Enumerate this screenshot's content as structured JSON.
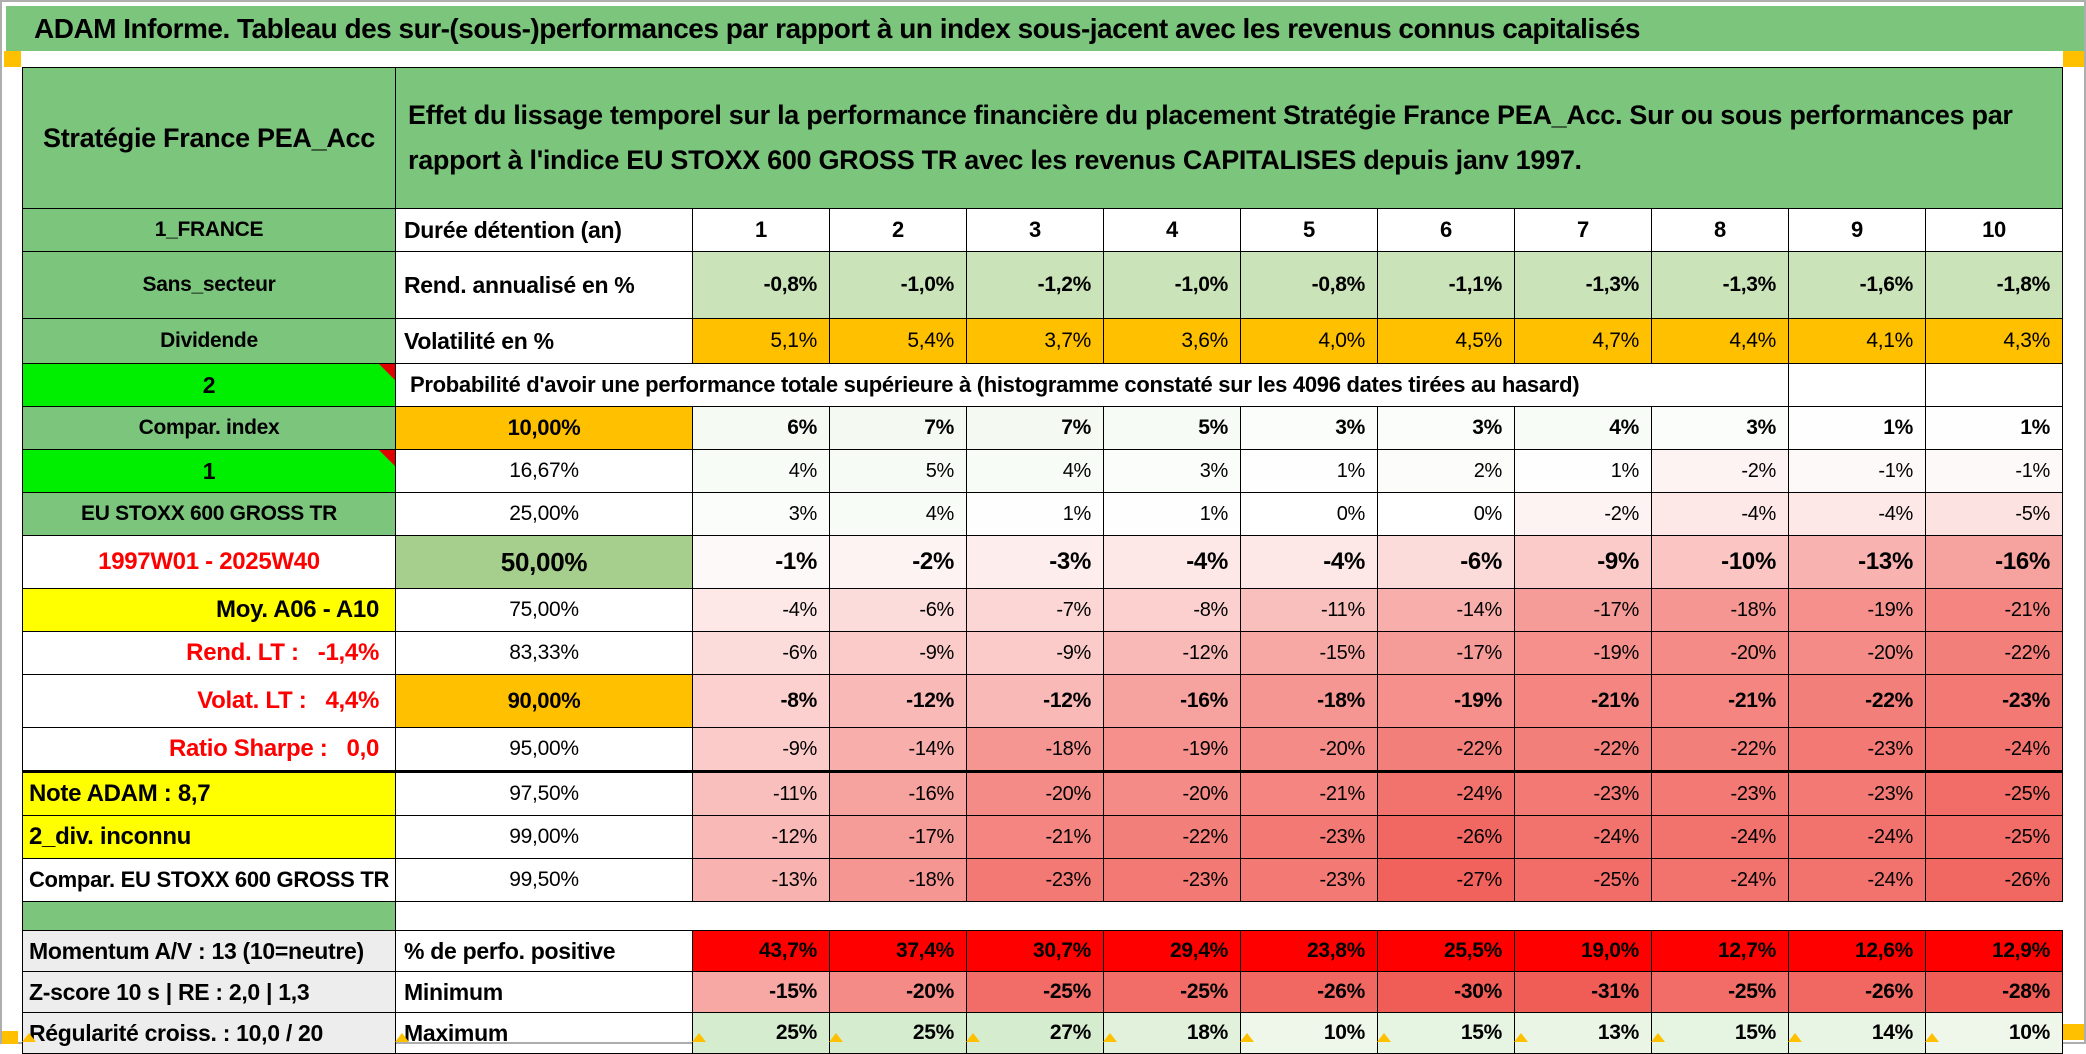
{
  "palette": {
    "green": "#7CC57D",
    "bright_green": "#00EF00",
    "orange": "#FFC000",
    "yellow": "#FFFF00",
    "light_green_row": "#CBE3B9",
    "pct_green": "#A6CE8C",
    "solid_red": "#FF0000",
    "red_text": "#FF0000",
    "gray_cell": "#EDEDED",
    "heat_negative_max": "#F05C56",
    "heat_positive_max": "#D6ECCE",
    "marker_orange": "#FFC000"
  },
  "title": "ADAM Informe. Tableau des sur-(sous-)performances par rapport à un index sous-jacent avec les revenus connus capitalisés",
  "header": {
    "strategy": "Stratégie France PEA_Acc",
    "description": "Effet du lissage temporel sur la performance financière du placement Stratégie France PEA_Acc. Sur ou sous performances par rapport à l'indice EU STOXX 600 GROSS TR avec les revenus CAPITALISES depuis janv 1997."
  },
  "columns": [
    "1",
    "2",
    "3",
    "4",
    "5",
    "6",
    "7",
    "8",
    "9",
    "10"
  ],
  "rows": [
    {
      "kind": "duree",
      "left": {
        "text": "1_FRANCE",
        "style": "green"
      },
      "mid": {
        "text": "Durée détention (an)",
        "style": "label"
      },
      "values": [
        "1",
        "2",
        "3",
        "4",
        "5",
        "6",
        "7",
        "8",
        "9",
        "10"
      ],
      "cell_style": "duree"
    },
    {
      "kind": "rend",
      "left": {
        "text": "Sans_secteur",
        "style": "green"
      },
      "mid": {
        "text": "Rend. annualisé en %",
        "style": "label"
      },
      "values": [
        "-0,8%",
        "-1,0%",
        "-1,2%",
        "-1,0%",
        "-0,8%",
        "-1,1%",
        "-1,3%",
        "-1,3%",
        "-1,6%",
        "-1,8%"
      ],
      "cell_style": "lightgreen"
    },
    {
      "kind": "volat",
      "left": {
        "text": "Dividende",
        "style": "green"
      },
      "mid": {
        "text": "Volatilité en %",
        "style": "label"
      },
      "values": [
        "5,1%",
        "5,4%",
        "3,7%",
        "3,6%",
        "4,0%",
        "4,5%",
        "4,7%",
        "4,4%",
        "4,1%",
        "4,3%"
      ],
      "cell_style": "orange"
    },
    {
      "kind": "probhead",
      "left": {
        "text": "2",
        "style": "bright",
        "corner": true
      },
      "mid": {
        "text": "Probabilité d'avoir une performance totale supérieure à (histogramme constaté sur les 4096 dates tirées au hasard)",
        "style": "prob-label",
        "colspan": 9
      },
      "values": [
        "",
        ""
      ],
      "cell_style": "empty"
    },
    {
      "kind": "prob",
      "left": {
        "text": "Compar. index",
        "style": "green"
      },
      "mid": {
        "text": "10,00%",
        "style": "pct-orange"
      },
      "values": [
        "6%",
        "7%",
        "7%",
        "5%",
        "3%",
        "3%",
        "4%",
        "3%",
        "1%",
        "1%"
      ],
      "cell_style": "heat-bold"
    },
    {
      "kind": "prob",
      "left": {
        "text": "1",
        "style": "bright",
        "corner": true
      },
      "mid": {
        "text": "16,67%",
        "style": "pct"
      },
      "values": [
        "4%",
        "5%",
        "4%",
        "3%",
        "1%",
        "2%",
        "1%",
        "-2%",
        "-1%",
        "-1%"
      ],
      "cell_style": "heat"
    },
    {
      "kind": "prob",
      "left": {
        "text": "EU STOXX 600 GROSS TR",
        "style": "green"
      },
      "mid": {
        "text": "25,00%",
        "style": "pct"
      },
      "values": [
        "3%",
        "4%",
        "1%",
        "1%",
        "0%",
        "0%",
        "-2%",
        "-4%",
        "-4%",
        "-5%"
      ],
      "cell_style": "heat"
    },
    {
      "kind": "prob50",
      "left": {
        "text": "1997W01 - 2025W40",
        "style": "red"
      },
      "mid": {
        "text": "50,00%",
        "style": "pct-green"
      },
      "values": [
        "-1%",
        "-2%",
        "-3%",
        "-4%",
        "-4%",
        "-6%",
        "-9%",
        "-10%",
        "-13%",
        "-16%"
      ],
      "cell_style": "heat-big"
    },
    {
      "kind": "prob",
      "left": {
        "text": "Moy. A06 - A10",
        "style": "yellow-right"
      },
      "mid": {
        "text": "75,00%",
        "style": "pct"
      },
      "values": [
        "-4%",
        "-6%",
        "-7%",
        "-8%",
        "-11%",
        "-14%",
        "-17%",
        "-18%",
        "-19%",
        "-21%"
      ],
      "cell_style": "heat"
    },
    {
      "kind": "prob",
      "left": {
        "text": "Rend. LT :   -1,4%",
        "style": "red-right"
      },
      "mid": {
        "text": "83,33%",
        "style": "pct"
      },
      "values": [
        "-6%",
        "-9%",
        "-9%",
        "-12%",
        "-15%",
        "-17%",
        "-19%",
        "-20%",
        "-20%",
        "-22%"
      ],
      "cell_style": "heat"
    },
    {
      "kind": "prob90",
      "left": {
        "text": "Volat. LT :   4,4%",
        "style": "red-right"
      },
      "mid": {
        "text": "90,00%",
        "style": "pct-orange-bold"
      },
      "values": [
        "-8%",
        "-12%",
        "-12%",
        "-16%",
        "-18%",
        "-19%",
        "-21%",
        "-21%",
        "-22%",
        "-23%"
      ],
      "cell_style": "heat-bold"
    },
    {
      "kind": "prob",
      "thick": true,
      "left": {
        "text": "Ratio Sharpe :   0,0",
        "style": "red-right"
      },
      "mid": {
        "text": "95,00%",
        "style": "pct"
      },
      "values": [
        "-9%",
        "-14%",
        "-18%",
        "-19%",
        "-20%",
        "-22%",
        "-22%",
        "-22%",
        "-23%",
        "-24%"
      ],
      "cell_style": "heat"
    },
    {
      "kind": "prob",
      "left": {
        "text": "Note ADAM : 8,7",
        "style": "yellow-left"
      },
      "mid": {
        "text": "97,50%",
        "style": "pct"
      },
      "values": [
        "-11%",
        "-16%",
        "-20%",
        "-20%",
        "-21%",
        "-24%",
        "-23%",
        "-23%",
        "-23%",
        "-25%"
      ],
      "cell_style": "heat"
    },
    {
      "kind": "prob",
      "left": {
        "text": "2_div. inconnu",
        "style": "yellow-left"
      },
      "mid": {
        "text": "99,00%",
        "style": "pct"
      },
      "values": [
        "-12%",
        "-17%",
        "-21%",
        "-22%",
        "-23%",
        "-26%",
        "-24%",
        "-24%",
        "-24%",
        "-25%"
      ],
      "cell_style": "heat"
    },
    {
      "kind": "prob",
      "left": {
        "text": "Compar. EU STOXX 600 GROSS TR",
        "style": "white-center"
      },
      "mid": {
        "text": "99,50%",
        "style": "pct"
      },
      "values": [
        "-13%",
        "-18%",
        "-23%",
        "-23%",
        "-23%",
        "-27%",
        "-25%",
        "-24%",
        "-24%",
        "-26%"
      ],
      "cell_style": "heat"
    },
    {
      "kind": "spacer",
      "left": {
        "text": "",
        "style": "green"
      },
      "mid": {
        "text": "",
        "style": "blank",
        "colspan": 11
      },
      "values": [],
      "cell_style": "blank"
    },
    {
      "kind": "perf",
      "left": {
        "text": "Momentum A/V : 13 (10=neutre)",
        "style": "gray"
      },
      "mid": {
        "text": "% de perfo. positive",
        "style": "label"
      },
      "values": [
        "43,7%",
        "37,4%",
        "30,7%",
        "29,4%",
        "23,8%",
        "25,5%",
        "19,0%",
        "12,7%",
        "12,6%",
        "12,9%"
      ],
      "cell_style": "red-solid"
    },
    {
      "kind": "minmax",
      "left": {
        "text": "Z-score 10 s | RE : 2,0 | 1,3",
        "style": "gray"
      },
      "mid": {
        "text": "Minimum",
        "style": "label"
      },
      "values": [
        "-15%",
        "-20%",
        "-25%",
        "-25%",
        "-26%",
        "-30%",
        "-31%",
        "-25%",
        "-26%",
        "-28%"
      ],
      "cell_style": "heat-bold"
    },
    {
      "kind": "minmax",
      "left": {
        "text": "Régularité croiss. : 10,0 / 20",
        "style": "gray"
      },
      "mid": {
        "text": "Maximum",
        "style": "label"
      },
      "values": [
        "25%",
        "25%",
        "27%",
        "18%",
        "10%",
        "15%",
        "13%",
        "15%",
        "14%",
        "10%"
      ],
      "cell_style": "heat-bold"
    }
  ]
}
